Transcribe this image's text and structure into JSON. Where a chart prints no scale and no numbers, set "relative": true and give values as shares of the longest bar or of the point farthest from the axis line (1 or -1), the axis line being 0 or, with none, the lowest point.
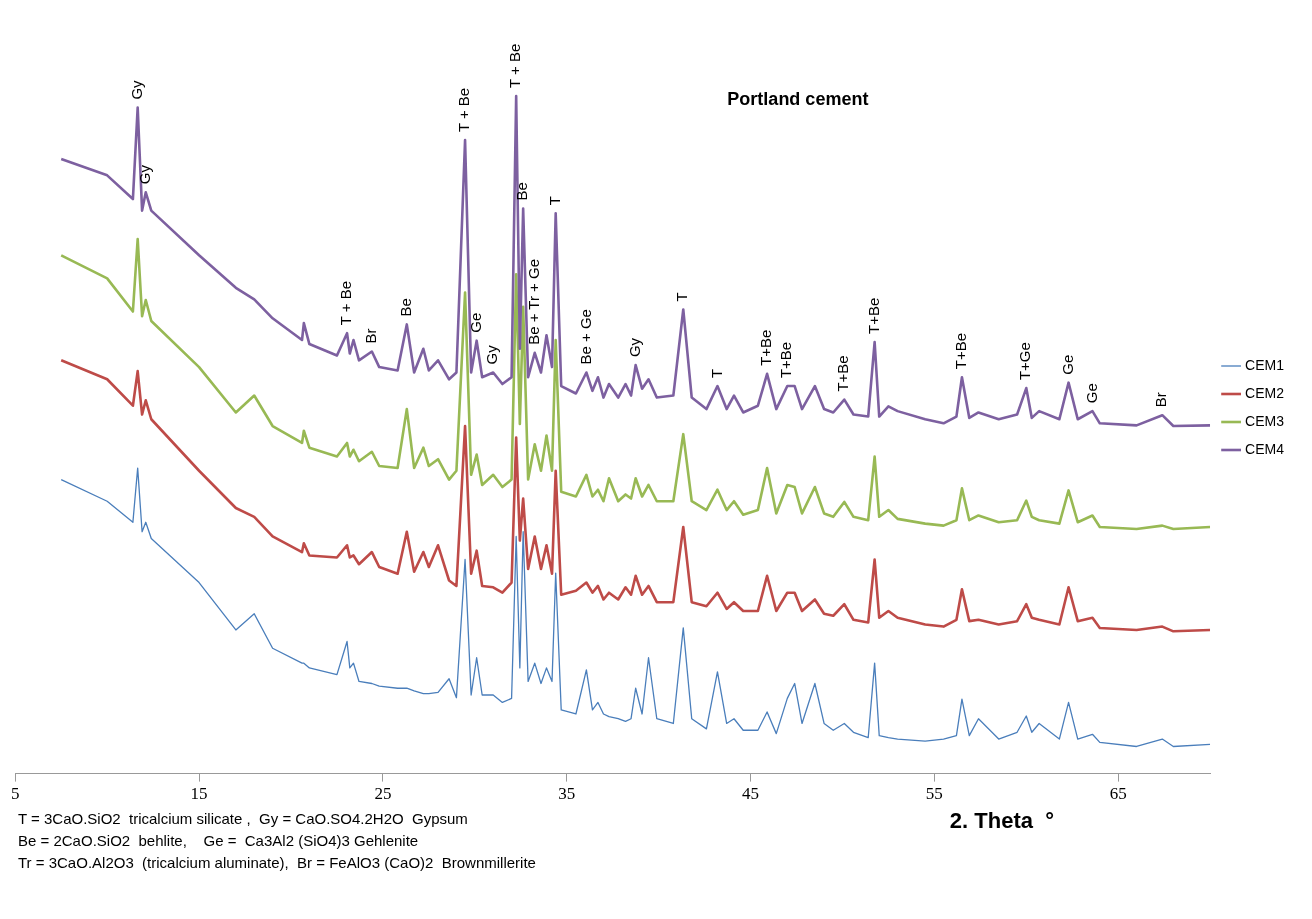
{
  "chart_data": {
    "type": "line",
    "title": "Portland cement",
    "xlabel": "2. Theta  °",
    "relative": true,
    "legend": "right",
    "marker": "none",
    "xlim": [
      5,
      70
    ],
    "xticks": [
      5,
      15,
      25,
      35,
      45,
      55,
      65
    ],
    "x": [
      7.5,
      10,
      11.4,
      11.66,
      11.9,
      12.1,
      12.4,
      15,
      17,
      18,
      19,
      20.6,
      20.7,
      21,
      22.5,
      23.05,
      23.2,
      23.4,
      23.7,
      24.4,
      24.8,
      25.8,
      26.3,
      26.7,
      27.2,
      27.5,
      28,
      28.6,
      29,
      29.47,
      29.8,
      30.1,
      30.4,
      31,
      31.5,
      32,
      32.25,
      32.45,
      32.63,
      32.9,
      33.26,
      33.6,
      33.9,
      34.2,
      34.4,
      34.7,
      35.5,
      36.07,
      36.4,
      36.7,
      37,
      37.3,
      37.8,
      38.2,
      38.5,
      38.75,
      39.1,
      39.45,
      39.9,
      40.8,
      41.34,
      41.8,
      42.6,
      43.2,
      43.7,
      44.1,
      44.6,
      45.4,
      45.9,
      46.4,
      47,
      47.4,
      47.8,
      48.5,
      49,
      49.5,
      50.1,
      50.6,
      51.4,
      51.75,
      52,
      52.5,
      53,
      54.5,
      55.5,
      56.2,
      56.5,
      56.9,
      57.4,
      58.5,
      59.5,
      60,
      60.3,
      60.7,
      61.8,
      62.3,
      62.8,
      63.6,
      64,
      66,
      67.4,
      68,
      70
    ],
    "series": [
      {
        "name": "CEM1",
        "color": "#4a7ebb",
        "values": [
          0.434,
          0.402,
          0.371,
          0.451,
          0.357,
          0.371,
          0.347,
          0.282,
          0.212,
          0.236,
          0.185,
          0.163,
          0.163,
          0.156,
          0.146,
          0.195,
          0.156,
          0.163,
          0.136,
          0.133,
          0.129,
          0.126,
          0.126,
          0.122,
          0.118,
          0.118,
          0.12,
          0.14,
          0.112,
          0.316,
          0.116,
          0.171,
          0.116,
          0.116,
          0.105,
          0.111,
          0.35,
          0.156,
          0.357,
          0.136,
          0.163,
          0.133,
          0.156,
          0.136,
          0.296,
          0.094,
          0.088,
          0.153,
          0.094,
          0.105,
          0.088,
          0.084,
          0.081,
          0.077,
          0.081,
          0.126,
          0.088,
          0.171,
          0.081,
          0.074,
          0.215,
          0.081,
          0.066,
          0.15,
          0.074,
          0.081,
          0.064,
          0.064,
          0.091,
          0.059,
          0.111,
          0.133,
          0.074,
          0.133,
          0.074,
          0.064,
          0.074,
          0.061,
          0.053,
          0.163,
          0.056,
          0.053,
          0.051,
          0.048,
          0.051,
          0.056,
          0.11,
          0.056,
          0.081,
          0.051,
          0.061,
          0.085,
          0.061,
          0.074,
          0.051,
          0.105,
          0.051,
          0.058,
          0.046,
          0.04,
          0.051,
          0.04,
          0.043
        ]
      },
      {
        "name": "CEM2",
        "color": "#be4b48",
        "values": [
          0.61,
          0.582,
          0.543,
          0.594,
          0.53,
          0.551,
          0.523,
          0.447,
          0.392,
          0.379,
          0.35,
          0.327,
          0.34,
          0.322,
          0.319,
          0.337,
          0.319,
          0.322,
          0.309,
          0.327,
          0.305,
          0.295,
          0.357,
          0.298,
          0.327,
          0.305,
          0.337,
          0.285,
          0.277,
          0.513,
          0.295,
          0.329,
          0.277,
          0.275,
          0.267,
          0.282,
          0.496,
          0.344,
          0.406,
          0.302,
          0.35,
          0.302,
          0.337,
          0.295,
          0.447,
          0.264,
          0.27,
          0.282,
          0.267,
          0.277,
          0.257,
          0.267,
          0.257,
          0.275,
          0.264,
          0.292,
          0.264,
          0.277,
          0.253,
          0.253,
          0.364,
          0.253,
          0.247,
          0.267,
          0.243,
          0.253,
          0.24,
          0.24,
          0.292,
          0.24,
          0.267,
          0.267,
          0.24,
          0.257,
          0.236,
          0.233,
          0.25,
          0.227,
          0.223,
          0.316,
          0.23,
          0.24,
          0.23,
          0.22,
          0.217,
          0.227,
          0.272,
          0.225,
          0.227,
          0.22,
          0.225,
          0.25,
          0.23,
          0.227,
          0.22,
          0.275,
          0.225,
          0.23,
          0.215,
          0.212,
          0.217,
          0.21,
          0.212
        ]
      },
      {
        "name": "CEM3",
        "color": "#98b954",
        "values": [
          0.765,
          0.731,
          0.682,
          0.789,
          0.675,
          0.699,
          0.668,
          0.6,
          0.533,
          0.558,
          0.513,
          0.488,
          0.506,
          0.481,
          0.468,
          0.488,
          0.468,
          0.478,
          0.461,
          0.475,
          0.454,
          0.451,
          0.538,
          0.451,
          0.481,
          0.454,
          0.464,
          0.434,
          0.447,
          0.71,
          0.441,
          0.471,
          0.426,
          0.441,
          0.423,
          0.434,
          0.737,
          0.516,
          0.689,
          0.434,
          0.486,
          0.447,
          0.499,
          0.447,
          0.64,
          0.416,
          0.409,
          0.441,
          0.409,
          0.419,
          0.402,
          0.436,
          0.402,
          0.412,
          0.406,
          0.436,
          0.409,
          0.426,
          0.402,
          0.402,
          0.501,
          0.402,
          0.389,
          0.419,
          0.389,
          0.402,
          0.382,
          0.389,
          0.451,
          0.384,
          0.426,
          0.423,
          0.384,
          0.423,
          0.384,
          0.379,
          0.401,
          0.379,
          0.374,
          0.468,
          0.379,
          0.389,
          0.376,
          0.369,
          0.366,
          0.374,
          0.421,
          0.374,
          0.381,
          0.371,
          0.374,
          0.403,
          0.379,
          0.374,
          0.369,
          0.418,
          0.371,
          0.381,
          0.364,
          0.361,
          0.366,
          0.361,
          0.364
        ]
      },
      {
        "name": "CEM4",
        "color": "#7d60a0",
        "values": [
          0.907,
          0.883,
          0.848,
          0.983,
          0.831,
          0.858,
          0.831,
          0.765,
          0.717,
          0.7,
          0.672,
          0.64,
          0.665,
          0.634,
          0.617,
          0.65,
          0.62,
          0.64,
          0.61,
          0.623,
          0.6,
          0.595,
          0.663,
          0.592,
          0.627,
          0.595,
          0.61,
          0.582,
          0.592,
          0.935,
          0.592,
          0.639,
          0.585,
          0.592,
          0.575,
          0.585,
          1.0,
          0.627,
          0.834,
          0.585,
          0.621,
          0.592,
          0.647,
          0.6,
          0.827,
          0.572,
          0.561,
          0.592,
          0.565,
          0.585,
          0.555,
          0.575,
          0.555,
          0.575,
          0.558,
          0.603,
          0.568,
          0.582,
          0.555,
          0.558,
          0.685,
          0.555,
          0.538,
          0.572,
          0.538,
          0.558,
          0.533,
          0.543,
          0.59,
          0.538,
          0.572,
          0.572,
          0.538,
          0.572,
          0.538,
          0.533,
          0.552,
          0.53,
          0.527,
          0.637,
          0.527,
          0.542,
          0.535,
          0.523,
          0.517,
          0.527,
          0.585,
          0.525,
          0.533,
          0.523,
          0.53,
          0.569,
          0.525,
          0.535,
          0.523,
          0.577,
          0.523,
          0.535,
          0.517,
          0.514,
          0.529,
          0.513,
          0.514
        ]
      }
    ],
    "annotations": [
      {
        "text": "Gy",
        "x": 11.66,
        "y": 0.983
      },
      {
        "text": "Gy",
        "x": 12.1,
        "y": 0.858
      },
      {
        "text": "T + Be",
        "x": 23.05,
        "y": 0.65
      },
      {
        "text": "Br",
        "x": 24.4,
        "y": 0.623
      },
      {
        "text": "Be",
        "x": 26.3,
        "y": 0.663
      },
      {
        "text": "T + Be",
        "x": 29.47,
        "y": 0.935
      },
      {
        "text": "Ge",
        "x": 30.1,
        "y": 0.639
      },
      {
        "text": "Gy",
        "x": 31,
        "y": 0.592
      },
      {
        "text": "T + Be",
        "x": 32.25,
        "y": 1.0
      },
      {
        "text": "Be",
        "x": 32.63,
        "y": 0.834
      },
      {
        "text": "Be + Tr + Ge",
        "x": 33.26,
        "y": 0.621
      },
      {
        "text": "T",
        "x": 34.4,
        "y": 0.827
      },
      {
        "text": "Be + Ge",
        "x": 36.07,
        "y": 0.592
      },
      {
        "text": "Gy",
        "x": 38.75,
        "y": 0.603
      },
      {
        "text": "T",
        "x": 41.34,
        "y": 0.685
      },
      {
        "text": "T",
        "x": 43.2,
        "y": 0.572
      },
      {
        "text": "T+Be",
        "x": 45.9,
        "y": 0.59
      },
      {
        "text": "T+Be",
        "x": 47,
        "y": 0.572
      },
      {
        "text": "T+Be",
        "x": 50.1,
        "y": 0.552
      },
      {
        "text": "T+Be",
        "x": 51.75,
        "y": 0.637
      },
      {
        "text": "T+Be",
        "x": 56.5,
        "y": 0.585
      },
      {
        "text": "T+Ge",
        "x": 60,
        "y": 0.569
      },
      {
        "text": "Ge",
        "x": 62.3,
        "y": 0.577
      },
      {
        "text": "Ge",
        "x": 63.6,
        "y": 0.535
      },
      {
        "text": "Br",
        "x": 67.4,
        "y": 0.529
      },
      "T = 3CaO.SiO2  tricalcium silicate ,  Gy = CaO.SO4.2H2O  Gypsum",
      "Be = 2CaO.SiO2  behlite,    Ge =  Ca3Al2 (SiO4)3 Gehlenite",
      "Tr = 3CaO.Al2O3  (tricalcium aluminate),  Br = FeAlO3 (CaO)2  Brownmillerite"
    ]
  }
}
